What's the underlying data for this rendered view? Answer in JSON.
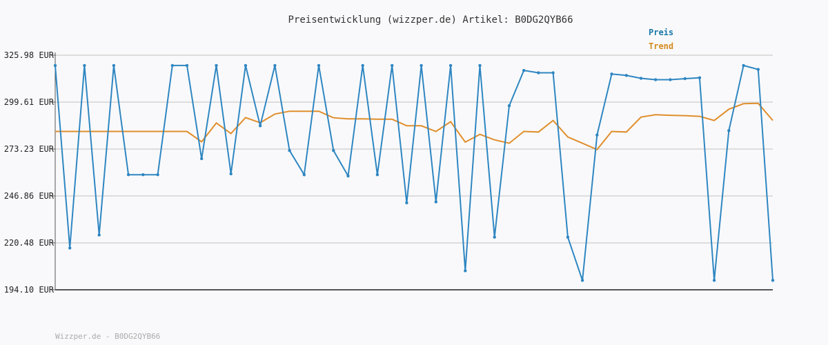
{
  "chart_data": {
    "type": "line",
    "title": "Preisentwicklung (wizzper.de) Artikel: B0DG2QYB66",
    "footer": "Wizzper.de - B0DG2QYB66",
    "ylim": [
      194.1,
      325.98
    ],
    "yticks": [
      "325.98 EUR",
      "299.61 EUR",
      "273.23 EUR",
      "246.86 EUR",
      "220.48 EUR",
      "194.10 EUR"
    ],
    "ytick_values": [
      325.98,
      299.61,
      273.23,
      246.86,
      220.48,
      194.1
    ],
    "grid": true,
    "legend_position": "top-right",
    "colors": {
      "preis": "#2e86c1",
      "trend": "#e08e2b",
      "grid": "#dddddd",
      "axis": "#555555",
      "preis_label": "#1a78a8",
      "trend_label": "#d48a1e"
    },
    "series": [
      {
        "name": "Preis",
        "values": [
          320.2,
          217.6,
          320.2,
          224.9,
          320.2,
          258.8,
          258.8,
          258.8,
          320.2,
          320.2,
          267.8,
          320.2,
          259.3,
          320.2,
          286.3,
          320.2,
          272.4,
          258.8,
          320.2,
          272.4,
          258.1,
          320.2,
          258.8,
          320.2,
          243.0,
          320.2,
          243.5,
          320.2,
          204.8,
          320.2,
          223.7,
          297.6,
          317.4,
          316.1,
          316.1,
          223.7,
          199.4,
          281.1,
          315.4,
          314.6,
          313.0,
          312.2,
          312.2,
          312.8,
          313.3,
          199.4,
          283.6,
          320.2,
          318.0,
          199.4
        ]
      },
      {
        "name": "Trend",
        "values": [
          283.1,
          283.1,
          283.1,
          283.1,
          283.1,
          283.1,
          283.1,
          283.1,
          283.1,
          283.1,
          277.3,
          287.9,
          281.9,
          290.9,
          288.0,
          292.9,
          294.5,
          294.5,
          294.5,
          290.8,
          290.2,
          290.2,
          290.0,
          290.0,
          286.3,
          286.3,
          283.1,
          288.6,
          277.1,
          281.5,
          278.4,
          276.5,
          283.1,
          282.8,
          289.3,
          280.0,
          276.5,
          272.9,
          283.1,
          282.8,
          291.2,
          292.5,
          292.2,
          292.0,
          291.6,
          289.3,
          295.6,
          298.7,
          298.9,
          289.3
        ]
      }
    ]
  }
}
